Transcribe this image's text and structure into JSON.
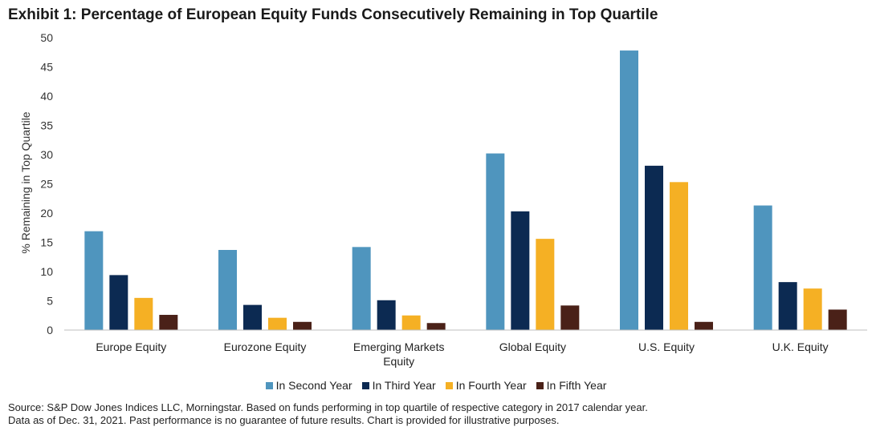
{
  "title": "Exhibit 1: Percentage of European Equity Funds Consecutively Remaining in Top Quartile",
  "source": {
    "line1": "Source: S&P Dow Jones Indices LLC, Morningstar.  Based on funds performing in top quartile of respective category in 2017 calendar year.",
    "line2": "Data as of Dec. 31, 2021.  Past performance is no guarantee of future results.  Chart is provided for illustrative purposes."
  },
  "chart_data": {
    "type": "bar",
    "title": "Exhibit 1: Percentage of European Equity Funds Consecutively Remaining in Top Quartile",
    "xlabel": "",
    "ylabel": "% Remaining in Top Quartile",
    "ylim": [
      0,
      50
    ],
    "yticks": [
      0,
      5,
      10,
      15,
      20,
      25,
      30,
      35,
      40,
      45,
      50
    ],
    "grid": false,
    "legend_position": "bottom",
    "categories": [
      [
        "Europe Equity"
      ],
      [
        "Eurozone Equity"
      ],
      [
        "Emerging Markets",
        "Equity"
      ],
      [
        "Global Equity"
      ],
      [
        "U.S. Equity"
      ],
      [
        "U.K. Equity"
      ]
    ],
    "series": [
      {
        "name": "In Second Year",
        "color": "#4f95be",
        "values": [
          16.9,
          13.7,
          14.2,
          30.2,
          47.8,
          21.3
        ]
      },
      {
        "name": "In Third Year",
        "color": "#0c2a52",
        "values": [
          9.4,
          4.3,
          5.1,
          20.3,
          28.1,
          8.2
        ]
      },
      {
        "name": "In Fourth Year",
        "color": "#f5b024",
        "values": [
          5.5,
          2.1,
          2.5,
          15.6,
          25.3,
          7.1
        ]
      },
      {
        "name": "In Fifth Year",
        "color": "#4a2118",
        "values": [
          2.6,
          1.4,
          1.2,
          4.2,
          1.4,
          3.5
        ]
      }
    ]
  }
}
